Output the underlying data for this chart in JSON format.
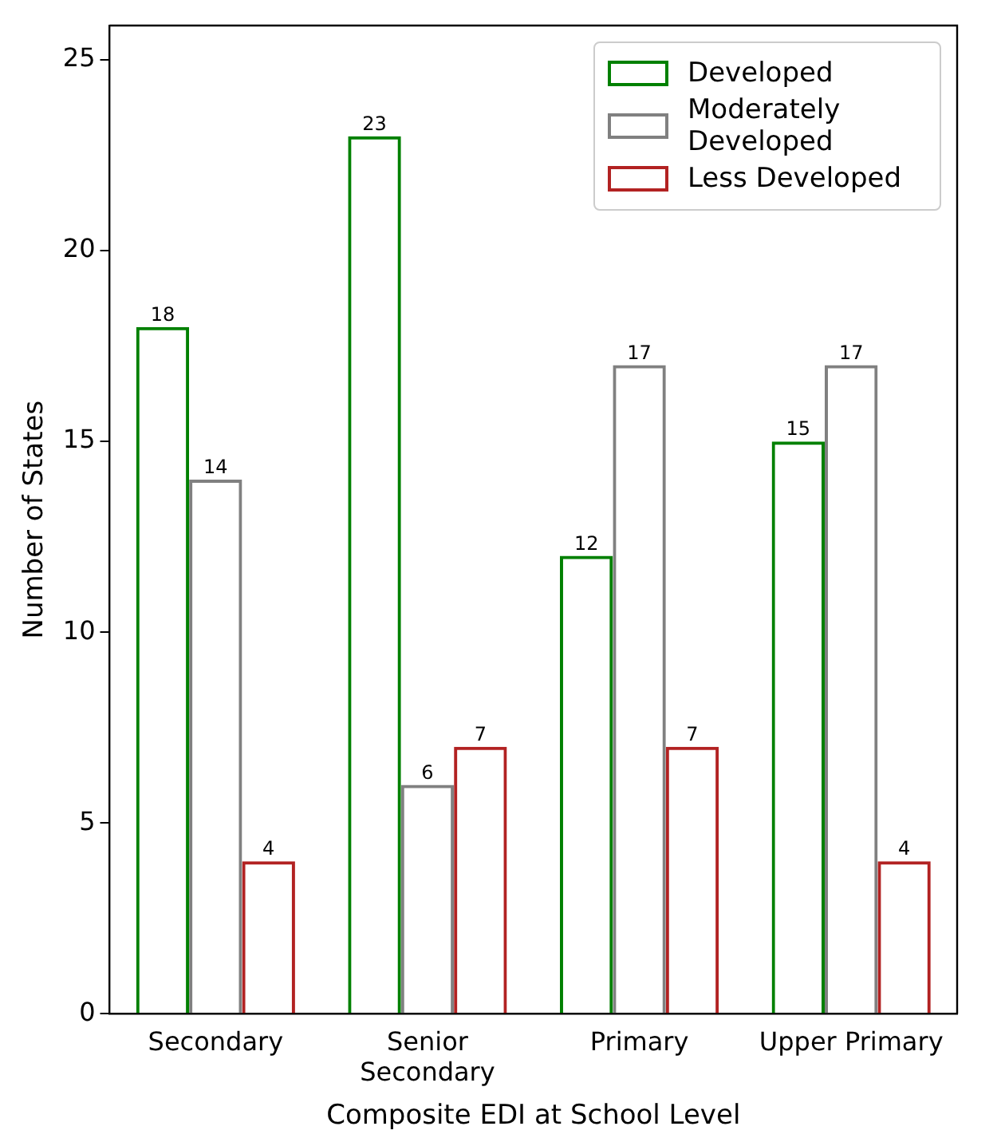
{
  "chart_data": {
    "type": "bar",
    "xlabel": "Composite EDI at School Level",
    "ylabel": "Number of States",
    "categories": [
      "Secondary",
      "Senior Secondary",
      "Primary",
      "Upper Primary"
    ],
    "series": [
      {
        "name": "Developed",
        "color": "#008000",
        "values": [
          18,
          23,
          12,
          15
        ]
      },
      {
        "name": "Moderately Developed",
        "color": "#808080",
        "values": [
          14,
          6,
          17,
          17
        ]
      },
      {
        "name": "Less Developed",
        "color": "#b22222",
        "values": [
          4,
          7,
          7,
          4
        ]
      }
    ],
    "ylim": [
      0,
      25.9
    ],
    "yticks": [
      0,
      5,
      10,
      15,
      20,
      25
    ],
    "grid": false,
    "legend": "top right",
    "data_labels": true
  }
}
